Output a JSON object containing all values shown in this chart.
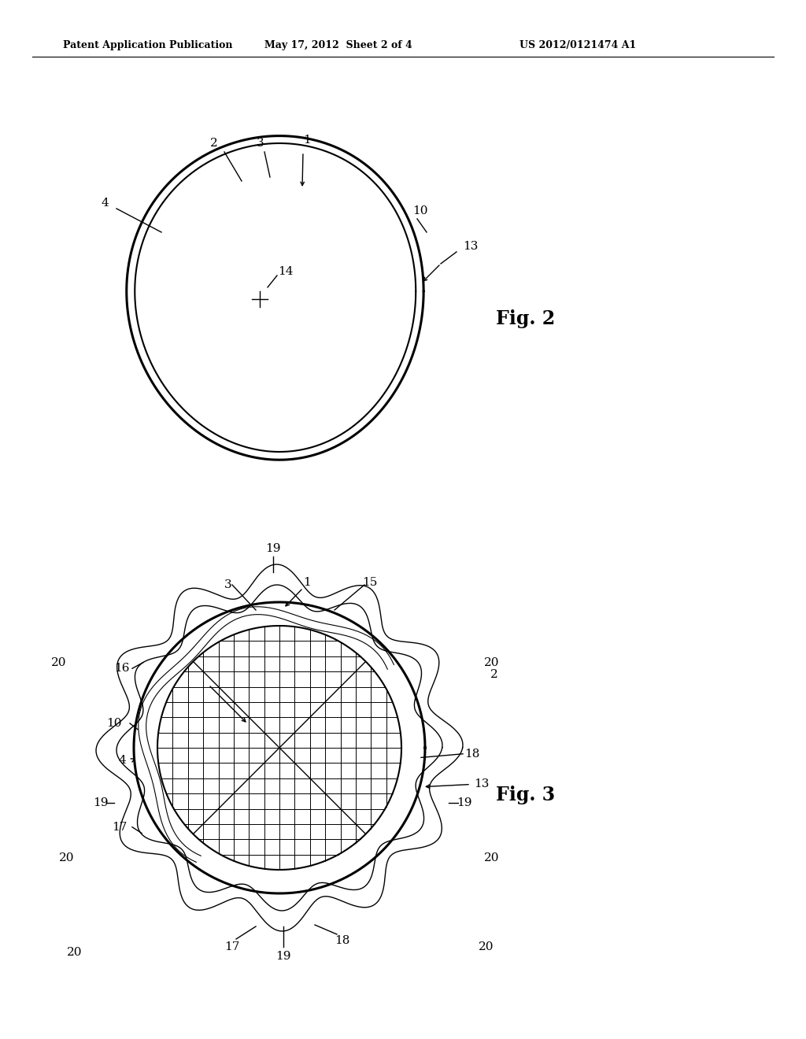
{
  "bg_color": "#ffffff",
  "line_color": "#000000",
  "header_left": "Patent Application Publication",
  "header_mid": "May 17, 2012  Sheet 2 of 4",
  "header_right": "US 2012/0121474 A1",
  "fig2_label": "Fig. 2",
  "fig3_label": "Fig. 3"
}
